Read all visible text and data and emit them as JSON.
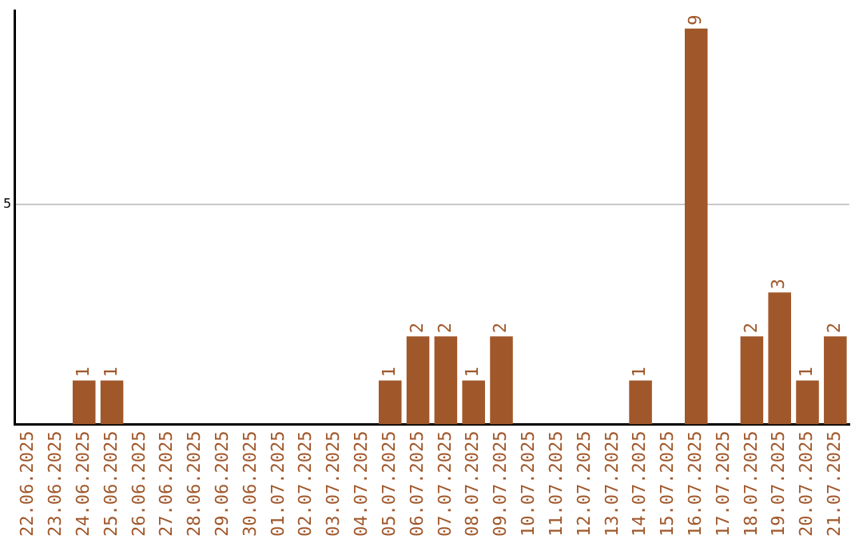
{
  "chart_data": {
    "type": "bar",
    "categories": [
      "22.06.2025",
      "23.06.2025",
      "24.06.2025",
      "25.06.2025",
      "26.06.2025",
      "27.06.2025",
      "28.06.2025",
      "29.06.2025",
      "30.06.2025",
      "01.07.2025",
      "02.07.2025",
      "03.07.2025",
      "04.07.2025",
      "05.07.2025",
      "06.07.2025",
      "07.07.2025",
      "08.07.2025",
      "09.07.2025",
      "10.07.2025",
      "11.07.2025",
      "12.07.2025",
      "13.07.2025",
      "14.07.2025",
      "15.07.2025",
      "16.07.2025",
      "17.07.2025",
      "18.07.2025",
      "19.07.2025",
      "20.07.2025",
      "21.07.2025"
    ],
    "values": [
      0,
      0,
      1,
      1,
      0,
      0,
      0,
      0,
      0,
      0,
      0,
      0,
      0,
      1,
      2,
      2,
      1,
      2,
      0,
      0,
      0,
      0,
      1,
      0,
      9,
      0,
      2,
      3,
      1,
      2
    ],
    "value_labels": [
      null,
      null,
      "1",
      "1",
      null,
      null,
      null,
      null,
      null,
      null,
      null,
      null,
      null,
      "1",
      "2",
      "2",
      "1",
      "2",
      null,
      null,
      null,
      null,
      "1",
      null,
      "9",
      null,
      "2",
      "3",
      "1",
      "2"
    ],
    "color": "#a0572a",
    "ylim": [
      0,
      9.4
    ],
    "yticks": [
      5
    ],
    "grid": "y",
    "legend": false
  }
}
